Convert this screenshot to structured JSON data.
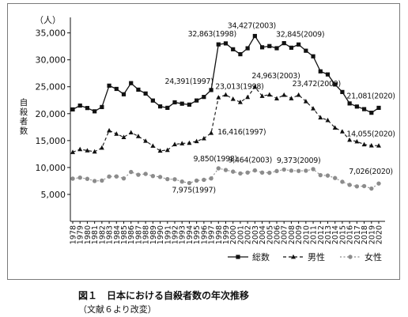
{
  "chart_data": {
    "type": "line",
    "unit_label": "（人）",
    "ylabel": "自殺者数",
    "ylim": [
      0,
      37000
    ],
    "yticks": [
      5000,
      10000,
      15000,
      20000,
      25000,
      30000,
      35000
    ],
    "ytick_labels": [
      "5,000",
      "10,000",
      "15,000",
      "20,000",
      "25,000",
      "30,000",
      "35,000"
    ],
    "x": [
      1978,
      1979,
      1980,
      1981,
      1982,
      1983,
      1984,
      1985,
      1986,
      1987,
      1988,
      1989,
      1990,
      1991,
      1992,
      1993,
      1994,
      1995,
      1996,
      1997,
      1998,
      1999,
      2000,
      2001,
      2002,
      2003,
      2004,
      2005,
      2006,
      2007,
      2008,
      2009,
      2010,
      2011,
      2012,
      2013,
      2014,
      2015,
      2016,
      2017,
      2018,
      2019,
      2020
    ],
    "series": [
      {
        "name": "総数",
        "marker": "square",
        "dash": "solid",
        "color": "#111111",
        "values": [
          20788,
          21503,
          21048,
          20434,
          21228,
          25202,
          24596,
          23599,
          25667,
          24460,
          23742,
          22436,
          21346,
          21084,
          22104,
          21851,
          21679,
          22445,
          23104,
          24391,
          32863,
          33048,
          31957,
          31042,
          32143,
          34427,
          32325,
          32552,
          32155,
          33093,
          32249,
          32845,
          31690,
          30651,
          27858,
          27283,
          25427,
          24025,
          21897,
          21321,
          20840,
          20169,
          21081
        ]
      },
      {
        "name": "男性",
        "marker": "triangle",
        "dash": "dashed",
        "color": "#111111",
        "values": [
          12859,
          13386,
          13155,
          12942,
          13654,
          16876,
          16251,
          15624,
          16497,
          15802,
          14934,
          14019,
          13102,
          13242,
          14296,
          14468,
          14560,
          14874,
          15393,
          16416,
          23013,
          23512,
          22727,
          22144,
          23080,
          24963,
          23272,
          23540,
          22813,
          23478,
          22831,
          23472,
          22283,
          20955,
          19273,
          18787,
          17386,
          16681,
          15121,
          14826,
          14290,
          14078,
          14055
        ]
      },
      {
        "name": "女性",
        "marker": "circle",
        "dash": "dotted",
        "color": "#8c8c8c",
        "values": [
          7929,
          8117,
          7893,
          7492,
          7574,
          8326,
          8345,
          7975,
          9170,
          8658,
          8808,
          8417,
          8244,
          7842,
          7808,
          7383,
          7119,
          7571,
          7711,
          7975,
          9850,
          9536,
          9230,
          8898,
          9063,
          9464,
          9053,
          9012,
          9342,
          9615,
          9418,
          9373,
          9407,
          9696,
          8585,
          8496,
          8041,
          7344,
          6776,
          6495,
          6550,
          6091,
          7026
        ]
      }
    ],
    "annotations": [
      {
        "series": 0,
        "year": 1997,
        "text": "24,391(1997)"
      },
      {
        "series": 0,
        "year": 1998,
        "text": "32,863(1998)"
      },
      {
        "series": 0,
        "year": 2003,
        "text": "34,427(2003)"
      },
      {
        "series": 0,
        "year": 2009,
        "text": "32,845(2009)"
      },
      {
        "series": 0,
        "year": 2020,
        "text": "21,081(2020)"
      },
      {
        "series": 1,
        "year": 1997,
        "text": "16,416(1997)"
      },
      {
        "series": 1,
        "year": 1998,
        "text": "23,013(1998)"
      },
      {
        "series": 1,
        "year": 2003,
        "text": "24,963(2003)"
      },
      {
        "series": 1,
        "year": 2009,
        "text": "23,472(2009)"
      },
      {
        "series": 1,
        "year": 2020,
        "text": "14,055(2020)"
      },
      {
        "series": 2,
        "year": 1997,
        "text": "7,975(1997)"
      },
      {
        "series": 2,
        "year": 1998,
        "text": "9,850(1998)"
      },
      {
        "series": 2,
        "year": 2003,
        "text": "9,464(2003)"
      },
      {
        "series": 2,
        "year": 2009,
        "text": "9,373(2009)"
      },
      {
        "series": 2,
        "year": 2020,
        "text": "7,026(2020)"
      }
    ],
    "legend": {
      "position": "bottom-right",
      "labels": [
        "総数",
        "男性",
        "女性"
      ]
    },
    "grid": false
  },
  "caption": {
    "title": "図１　日本における自殺者数の年次推移",
    "source": "（文献６より改変）"
  }
}
